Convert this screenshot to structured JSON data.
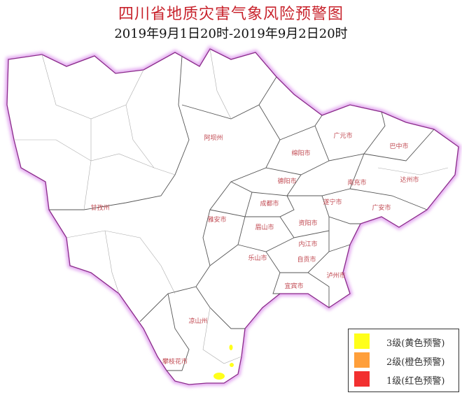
{
  "header": {
    "title": "四川省地质灾害气象风险预警图",
    "subtitle": "2019年9月1日20时-2019年9月2日20时"
  },
  "map": {
    "prefectures": [
      "甘孜州",
      "阿坝州",
      "绵阳市",
      "广元市",
      "巴中市",
      "达州市",
      "南充市",
      "德阳市",
      "成都市",
      "遂宁市",
      "广安市",
      "雅安市",
      "眉山市",
      "资阳市",
      "内江市",
      "乐山市",
      "自贡市",
      "宜宾市",
      "泸州市",
      "凉山州",
      "攀枝花市"
    ],
    "warning_areas_level": "3级",
    "border_color": "#8a2a8a",
    "glow_color": "#e3a8f0"
  },
  "legend": {
    "items": [
      {
        "label": "3级(黄色预警)",
        "color": "#ffff1a"
      },
      {
        "label": "2级(橙色预警)",
        "color": "#ff9f3a"
      },
      {
        "label": "1级(红色预警)",
        "color": "#f23030"
      }
    ]
  }
}
